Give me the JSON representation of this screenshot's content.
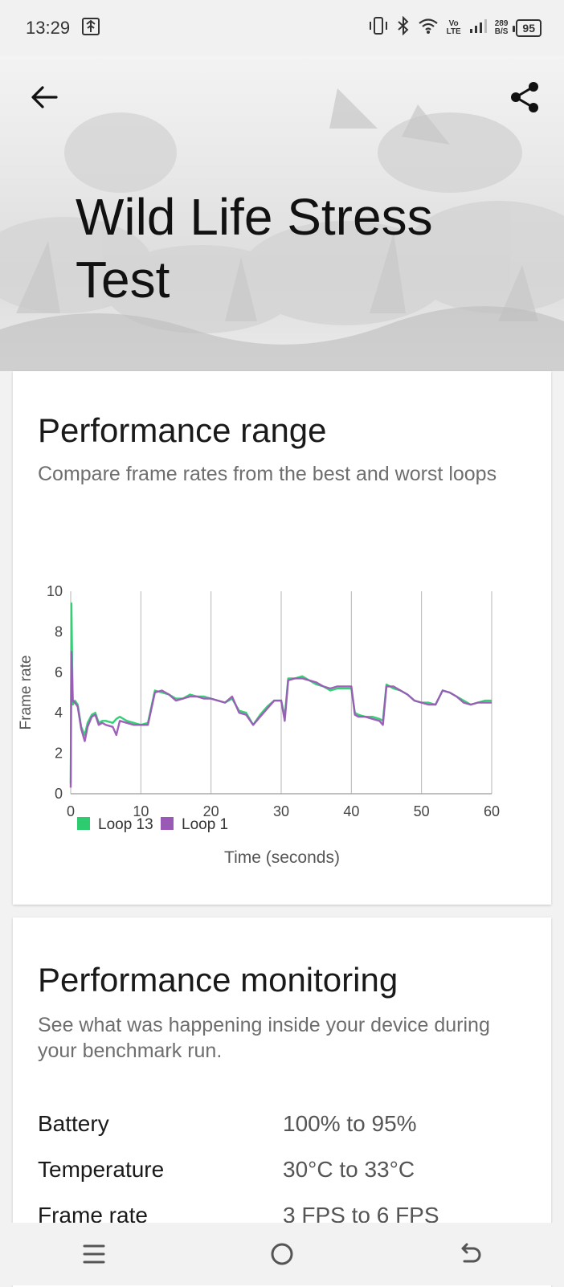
{
  "status_bar": {
    "time": "13:29",
    "network_speed_value": "289",
    "network_speed_unit": "B/S",
    "volte_top": "Vo",
    "volte_bottom": "LTE",
    "battery_level": "95"
  },
  "header": {
    "title": "Wild Life Stress Test"
  },
  "performance_range": {
    "title": "Performance range",
    "subtitle": "Compare frame rates from the best and worst loops"
  },
  "chart_data": {
    "type": "line",
    "xlabel": "Time (seconds)",
    "ylabel": "Frame rate",
    "xlim": [
      0,
      60
    ],
    "ylim": [
      0,
      10
    ],
    "x_ticks": [
      "0",
      "10",
      "20",
      "30",
      "40",
      "50",
      "60"
    ],
    "y_ticks": [
      "0",
      "2",
      "4",
      "6",
      "8",
      "10"
    ],
    "grid": "vertical",
    "legend": "bottom-left",
    "series": [
      {
        "name": "Loop 13",
        "color": "#2ecc71",
        "x": [
          0,
          0.1,
          0.3,
          0.6,
          1,
          1.5,
          2,
          2.4,
          3,
          3.5,
          4,
          4.5,
          5,
          6,
          6.5,
          7,
          8,
          9,
          10,
          11,
          12,
          13,
          14,
          15,
          16,
          17,
          18,
          19,
          20,
          21,
          22,
          23,
          24,
          25,
          26,
          27,
          28,
          29,
          30,
          30.5,
          31,
          32,
          33,
          34,
          35,
          36,
          37,
          38,
          39,
          40,
          40.5,
          41,
          42,
          43,
          44,
          44.5,
          45,
          46,
          47,
          48,
          49,
          50,
          51,
          52,
          53,
          54,
          55,
          56,
          57,
          58,
          59,
          60
        ],
        "y": [
          0.5,
          9.4,
          4.4,
          4.6,
          4.4,
          3.3,
          2.9,
          3.5,
          3.9,
          4.0,
          3.5,
          3.6,
          3.6,
          3.5,
          3.7,
          3.8,
          3.6,
          3.5,
          3.4,
          3.5,
          5.1,
          5.0,
          4.9,
          4.7,
          4.7,
          4.9,
          4.8,
          4.8,
          4.7,
          4.6,
          4.5,
          4.7,
          4.1,
          4.0,
          3.4,
          3.9,
          4.3,
          4.6,
          4.6,
          3.8,
          5.7,
          5.7,
          5.8,
          5.6,
          5.4,
          5.3,
          5.1,
          5.2,
          5.2,
          5.2,
          4.0,
          3.9,
          3.8,
          3.8,
          3.7,
          3.6,
          5.4,
          5.2,
          5.1,
          4.9,
          4.6,
          4.5,
          4.5,
          4.4,
          5.1,
          5.0,
          4.8,
          4.6,
          4.4,
          4.5,
          4.6,
          4.6
        ]
      },
      {
        "name": "Loop 1",
        "color": "#9b59b6",
        "x": [
          0,
          0.1,
          0.3,
          0.6,
          1,
          1.5,
          2,
          2.4,
          3,
          3.5,
          4,
          4.5,
          5,
          6,
          6.5,
          7,
          8,
          9,
          10,
          11,
          12,
          13,
          14,
          15,
          16,
          17,
          18,
          19,
          20,
          21,
          22,
          23,
          24,
          25,
          26,
          27,
          28,
          29,
          30,
          30.5,
          31,
          32,
          33,
          34,
          35,
          36,
          37,
          38,
          39,
          40,
          40.5,
          41,
          42,
          43,
          44,
          44.5,
          45,
          46,
          47,
          48,
          49,
          50,
          51,
          52,
          53,
          54,
          55,
          56,
          57,
          58,
          59,
          60
        ],
        "y": [
          0.3,
          7.0,
          4.6,
          4.5,
          4.3,
          3.2,
          2.6,
          3.3,
          3.8,
          3.9,
          3.4,
          3.5,
          3.4,
          3.3,
          2.9,
          3.6,
          3.5,
          3.4,
          3.4,
          3.4,
          5.0,
          5.1,
          4.9,
          4.6,
          4.7,
          4.8,
          4.8,
          4.7,
          4.7,
          4.6,
          4.5,
          4.8,
          4.0,
          3.9,
          3.4,
          3.8,
          4.2,
          4.6,
          4.6,
          3.6,
          5.6,
          5.7,
          5.7,
          5.6,
          5.5,
          5.3,
          5.2,
          5.3,
          5.3,
          5.3,
          3.9,
          3.8,
          3.8,
          3.7,
          3.6,
          3.4,
          5.3,
          5.3,
          5.1,
          4.9,
          4.6,
          4.5,
          4.4,
          4.4,
          5.1,
          5.0,
          4.8,
          4.5,
          4.4,
          4.5,
          4.5,
          4.5
        ]
      }
    ]
  },
  "performance_monitoring": {
    "title": "Performance monitoring",
    "subtitle": "See what was happening inside your device during your benchmark run.",
    "metrics": [
      {
        "label": "Battery",
        "value": "100% to 95%"
      },
      {
        "label": "Temperature",
        "value": "30°C to 33°C"
      },
      {
        "label": "Frame rate",
        "value": "3 FPS to 6 FPS"
      }
    ]
  },
  "icons": {
    "back": "arrow-left-icon",
    "share": "share-icon",
    "nav_menu": "menu-icon",
    "nav_home": "home-circle-icon",
    "nav_back": "return-icon"
  }
}
